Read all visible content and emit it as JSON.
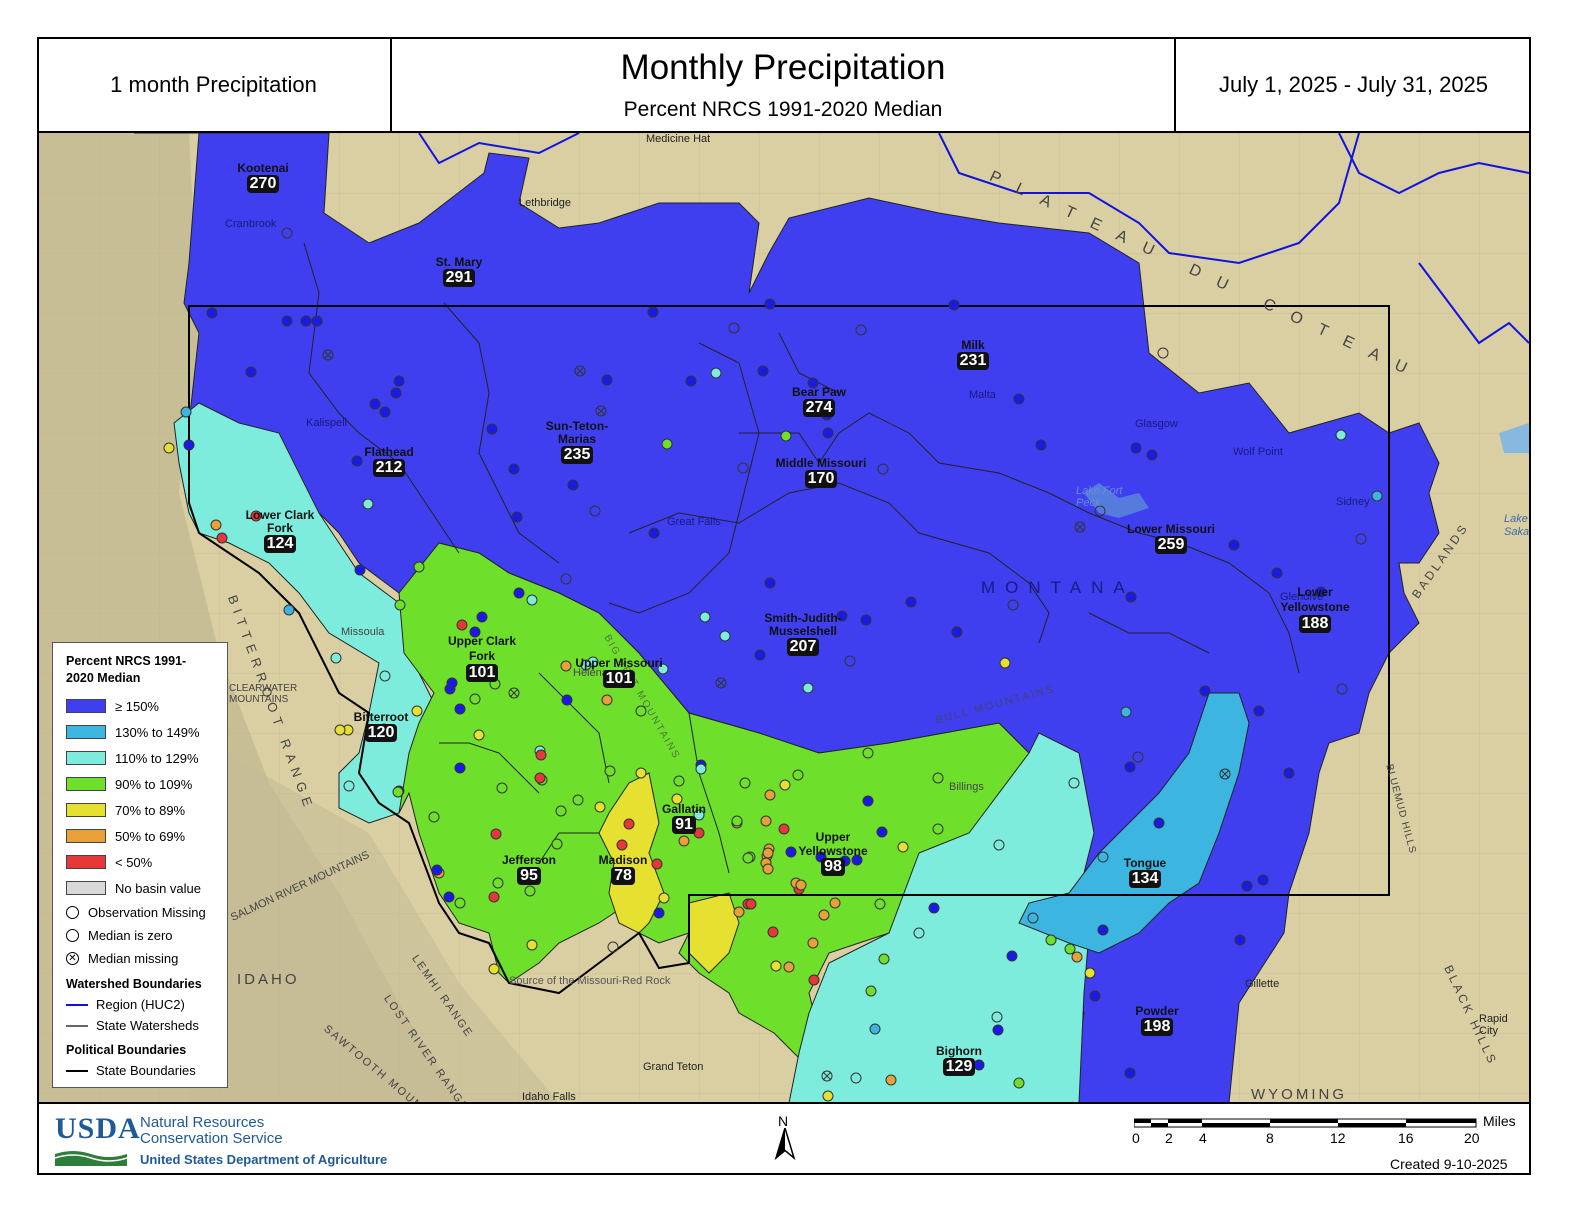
{
  "header": {
    "left": "1 month Precipitation",
    "title": "Monthly Precipitation",
    "subtitle": "Percent NRCS 1991-2020 Median",
    "right": "July 1, 2025 - July 31, 2025"
  },
  "colors": {
    "ge150": "#3f3ff0",
    "c130_149": "#3cb6e0",
    "c110_129": "#7eecdc",
    "c90_109": "#6ee02c",
    "c70_89": "#e6e030",
    "c50_69": "#e8a038",
    "lt50": "#e63838",
    "nodata": "#d8d8d8",
    "terrain": "#d9cfa2"
  },
  "basins": [
    {
      "name": "Kootenai",
      "value": "270"
    },
    {
      "name": "St. Mary",
      "value": "291"
    },
    {
      "name": "Flathead",
      "value": "212"
    },
    {
      "name": "Lower Clark Fork",
      "value": "124"
    },
    {
      "name": "Sun-Teton-Marias",
      "value": "235"
    },
    {
      "name": "Bear Paw",
      "value": "274"
    },
    {
      "name": "Milk",
      "value": "231"
    },
    {
      "name": "Middle Missouri",
      "value": "170"
    },
    {
      "name": "Lower Missouri",
      "value": "259"
    },
    {
      "name": "Lower Yellowstone",
      "value": "188"
    },
    {
      "name": "Smith-Judith-Musselshell",
      "value": "207"
    },
    {
      "name": "Upper Clark Fork",
      "value": "101"
    },
    {
      "name": "Upper Missouri",
      "value": "101"
    },
    {
      "name": "Bitterroot",
      "value": "120"
    },
    {
      "name": "Jefferson",
      "value": "95"
    },
    {
      "name": "Madison",
      "value": "78"
    },
    {
      "name": "Gallatin",
      "value": "91"
    },
    {
      "name": "Upper Yellowstone",
      "value": "98"
    },
    {
      "name": "Tongue",
      "value": "134"
    },
    {
      "name": "Powder",
      "value": "198"
    },
    {
      "name": "Bighorn",
      "value": "129"
    }
  ],
  "places": [
    "Medicine Hat",
    "Lethbridge",
    "Cranbrook",
    "Kalispell",
    "Missoula",
    "Helena",
    "Great Falls",
    "Malta",
    "Glasgow",
    "Wolf Point",
    "Sidney",
    "Glendive",
    "Billings",
    "Gillette",
    "Rapid City",
    "Idaho Falls",
    "Grand Teton",
    "Lake Fort Peck",
    "Lake Saka"
  ],
  "regions": [
    "PLATEAU DU COTEAU",
    "MONTANA",
    "IDAHO",
    "WYOMING",
    "BITTERROOT RANGE",
    "LEMHI RANGE",
    "LOST RIVER RANGE",
    "SAWTOOTH MOUNTAINS",
    "CLEARWATER MOUNTAINS",
    "SALMON RIVER MOUNTAINS",
    "BIG BELT MOUNTAINS",
    "BULL MOUNTAINS",
    "BADLANDS",
    "BLACK HILLS",
    "BLUEMUD HILLS",
    "Source of the Missouri-Red Rock"
  ],
  "legend": {
    "title": "Percent NRCS 1991-2020 Median",
    "items": [
      "≥ 150%",
      "130% to 149%",
      "110% to 129%",
      "90% to 109%",
      "70% to 89%",
      "50% to 69%",
      "< 50%",
      "No basin value"
    ],
    "symbols": [
      "Observation Missing",
      "Median is zero",
      "Median missing"
    ],
    "watershed_title": "Watershed Boundaries",
    "watershed_items": [
      "Region (HUC2)",
      "State Watersheds"
    ],
    "political_title": "Political Boundaries",
    "political_items": [
      "State Boundaries"
    ]
  },
  "footer": {
    "usda": "USDA",
    "agency_line1": "Natural Resources",
    "agency_line2": "Conservation Service",
    "department": "United States Department of Agriculture",
    "north": "N",
    "scale_unit": "Miles",
    "scale_ticks": [
      "0",
      "2",
      "4",
      "8",
      "12",
      "16",
      "20"
    ],
    "created": "Created 9-10-2025"
  }
}
